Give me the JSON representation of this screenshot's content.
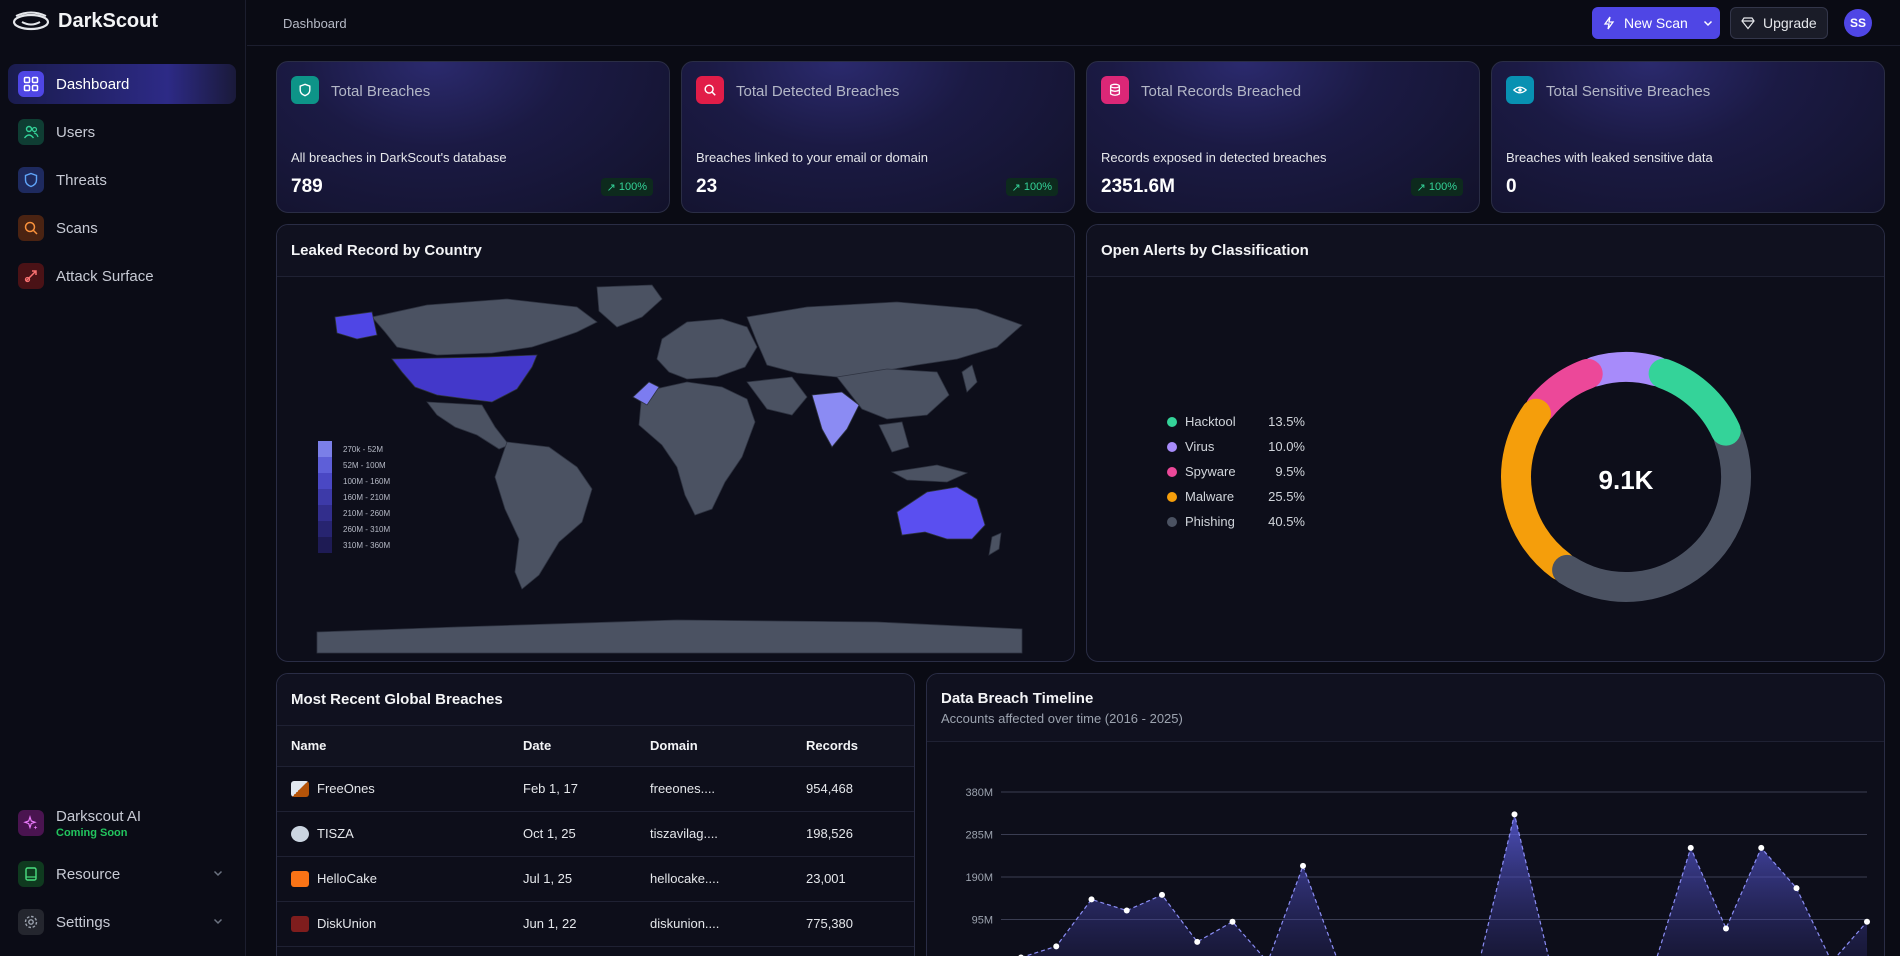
{
  "app": {
    "name": "DarkScout"
  },
  "sidebar": {
    "items": [
      {
        "label": "Dashboard",
        "icon": "grid-icon",
        "active": true
      },
      {
        "label": "Users",
        "icon": "users-icon"
      },
      {
        "label": "Threats",
        "icon": "shield-icon"
      },
      {
        "label": "Scans",
        "icon": "search-icon"
      },
      {
        "label": "Attack Surface",
        "icon": "target-icon"
      }
    ],
    "bottom": [
      {
        "label": "Darkscout AI",
        "badge": "Coming Soon",
        "icon": "sparkle-icon"
      },
      {
        "label": "Resource",
        "icon": "book-icon"
      },
      {
        "label": "Settings",
        "icon": "gear-icon"
      }
    ]
  },
  "header": {
    "breadcrumb": "Dashboard",
    "new_scan_label": "New Scan",
    "upgrade_label": "Upgrade",
    "avatar_initials": "SS"
  },
  "stats": [
    {
      "title": "Total Breaches",
      "desc": "All breaches in DarkScout's database",
      "value": "789",
      "badge": "100%",
      "color": "#0d9488",
      "icon": "shield-icon"
    },
    {
      "title": "Total Detected Breaches",
      "desc": "Breaches linked to your email or domain",
      "value": "23",
      "badge": "100%",
      "color": "#e11d48",
      "icon": "search-icon"
    },
    {
      "title": "Total Records Breached",
      "desc": "Records exposed in detected breaches",
      "value": "2351.6M",
      "badge": "100%",
      "color": "#db2777",
      "icon": "database-icon"
    },
    {
      "title": "Total Sensitive Breaches",
      "desc": "Breaches with leaked sensitive data",
      "value": "0",
      "color": "#0891b2",
      "icon": "eye-icon"
    }
  ],
  "map": {
    "title": "Leaked Record by Country",
    "legend": [
      "270k - 52M",
      "52M - 100M",
      "100M - 160M",
      "160M - 210M",
      "210M - 260M",
      "260M - 310M",
      "310M - 360M"
    ]
  },
  "alerts": {
    "title": "Open Alerts by Classification",
    "total": "9.1K",
    "items": [
      {
        "name": "Hacktool",
        "pct": "13.5%",
        "value": 13.5,
        "color": "#34d399"
      },
      {
        "name": "Virus",
        "pct": "10.0%",
        "value": 10.0,
        "color": "#a78bfa"
      },
      {
        "name": "Spyware",
        "pct": "9.5%",
        "value": 9.5,
        "color": "#ec4899"
      },
      {
        "name": "Malware",
        "pct": "25.5%",
        "value": 25.5,
        "color": "#f59e0b"
      },
      {
        "name": "Phishing",
        "pct": "40.5%",
        "value": 40.5,
        "color": "#4b5262"
      }
    ]
  },
  "breaches": {
    "title": "Most Recent Global Breaches",
    "columns": [
      "Name",
      "Date",
      "Domain",
      "Records"
    ],
    "rows": [
      {
        "name": "FreeOnes",
        "date": "Feb 1, 17",
        "domain": "freeones....",
        "records": "954,468",
        "color": "#e2e8f0"
      },
      {
        "name": "TISZA",
        "date": "Oct 1, 25",
        "domain": "tiszavilag....",
        "records": "198,526",
        "color": "#cbd5e1"
      },
      {
        "name": "HelloCake",
        "date": "Jul 1, 25",
        "domain": "hellocake....",
        "records": "23,001",
        "color": "#f97316"
      },
      {
        "name": "DiskUnion",
        "date": "Jun 1, 22",
        "domain": "diskunion....",
        "records": "775,380",
        "color": "#7f1d1d"
      }
    ]
  },
  "timeline": {
    "title": "Data Breach Timeline",
    "subtitle": "Accounts affected over time (2016 - 2025)"
  },
  "chart_data": {
    "type": "area",
    "title": "Data Breach Timeline",
    "subtitle": "Accounts affected over time (2016 - 2025)",
    "yticks": [
      "380M",
      "285M",
      "190M",
      "95M"
    ],
    "ylim": [
      0,
      380
    ],
    "values": [
      10,
      35,
      140,
      115,
      150,
      45,
      90,
      0,
      215,
      0,
      0,
      0,
      0,
      0,
      330,
      0,
      0,
      0,
      0,
      255,
      75,
      255,
      165,
      0,
      90
    ]
  }
}
